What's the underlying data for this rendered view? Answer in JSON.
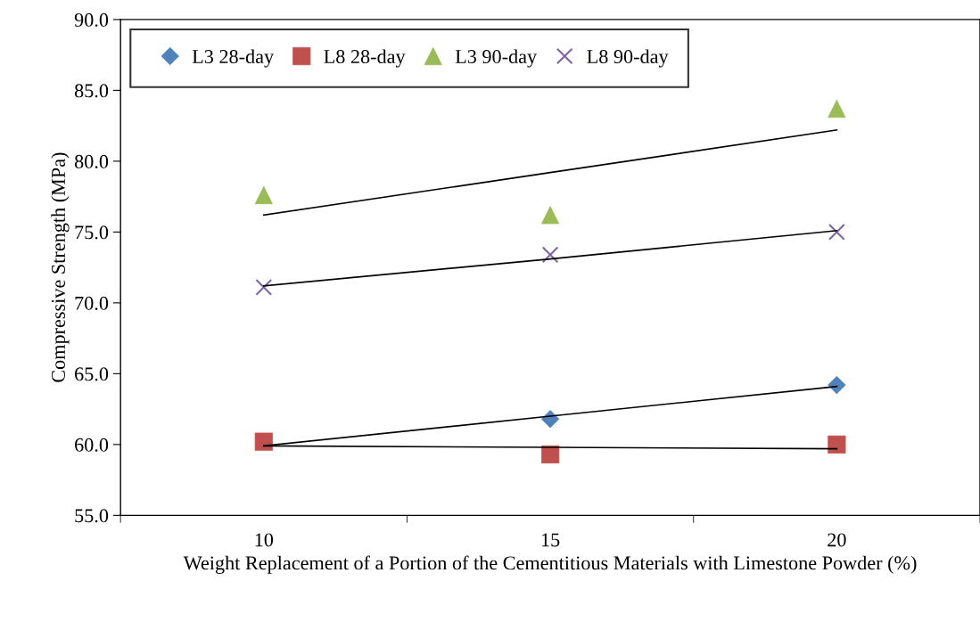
{
  "chart_data": {
    "type": "scatter",
    "xlabel": "Weight Replacement of a Portion of the Cementitious Materials with Limestone Powder (%)",
    "ylabel": "Compressive Strength (MPa)",
    "categories": [
      "10",
      "15",
      "20"
    ],
    "ylim": [
      55,
      90
    ],
    "yticks": [
      {
        "value": 55,
        "label": "55.0"
      },
      {
        "value": 60,
        "label": "60.0"
      },
      {
        "value": 65,
        "label": "65.0"
      },
      {
        "value": 70,
        "label": "70.0"
      },
      {
        "value": 75,
        "label": "75.0"
      },
      {
        "value": 80,
        "label": "80.0"
      },
      {
        "value": 85,
        "label": "85.0"
      },
      {
        "value": 90,
        "label": "90.0"
      }
    ],
    "series": [
      {
        "name": "L3 28-day",
        "color": "#4f81bd",
        "marker": "diamond",
        "values": [
          null,
          61.8,
          64.2
        ]
      },
      {
        "name": "L8 28-day",
        "color": "#c0504d",
        "marker": "square",
        "values": [
          60.2,
          59.3,
          60.0
        ]
      },
      {
        "name": "L3 90-day",
        "color": "#9bbb59",
        "marker": "triangle",
        "values": [
          77.6,
          76.2,
          83.7
        ]
      },
      {
        "name": "L8 90-day",
        "color": "#8064a2",
        "marker": "cross",
        "values": [
          71.1,
          73.4,
          75.0
        ]
      },
      {
        "type": "line",
        "color": "#000000",
        "values": [
          59.9,
          62.0,
          64.1
        ]
      },
      {
        "type": "line",
        "color": "#000000",
        "values": [
          59.9,
          59.8,
          59.7
        ]
      },
      {
        "type": "line",
        "color": "#000000",
        "values": [
          76.2,
          79.2,
          82.2
        ]
      },
      {
        "type": "line",
        "color": "#000000",
        "values": [
          71.2,
          73.1,
          75.1
        ]
      }
    ],
    "grid": false,
    "legend": "top left"
  }
}
